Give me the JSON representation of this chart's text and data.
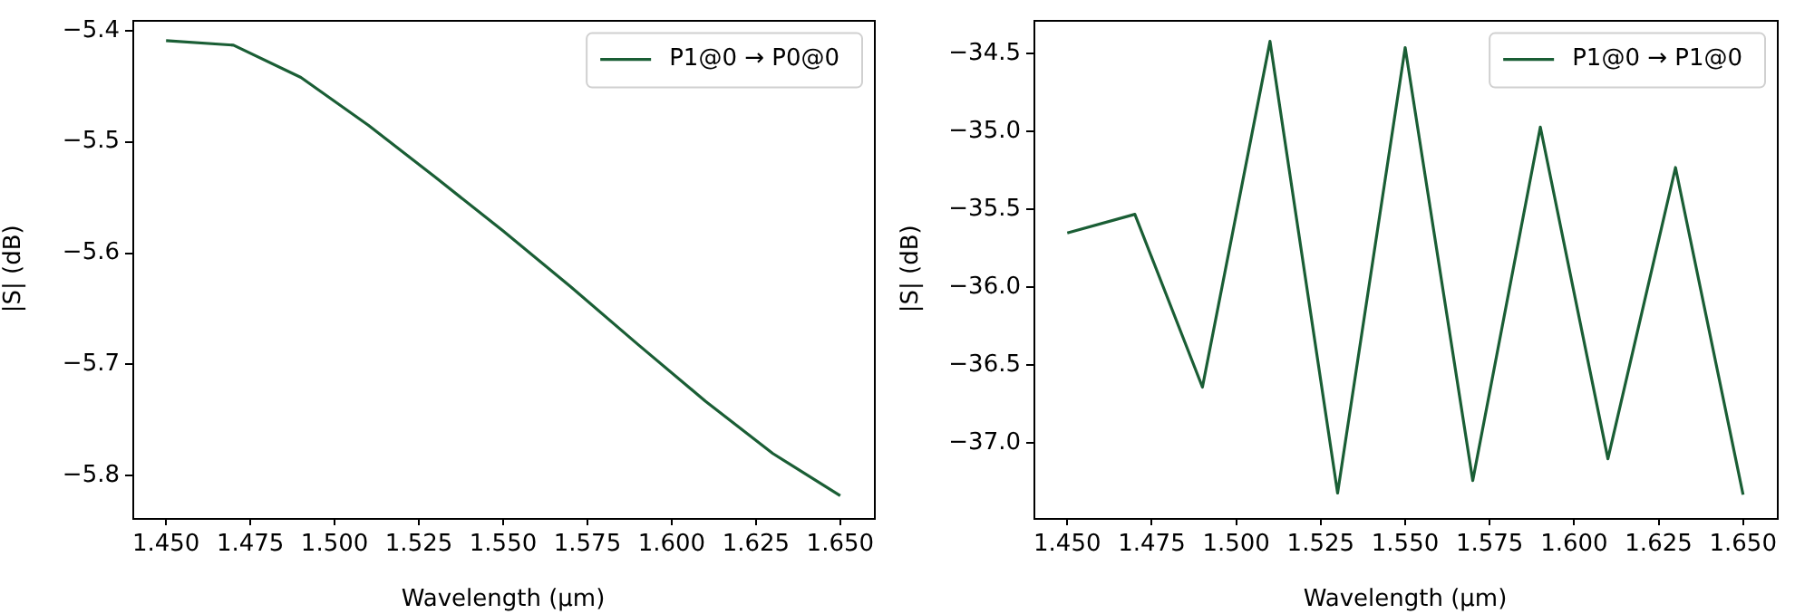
{
  "chart_data": [
    {
      "type": "line",
      "xlabel": "Wavelength (µm)",
      "ylabel": "|S| (dB)",
      "legend": "top right",
      "grid": false,
      "x": [
        1.45,
        1.47,
        1.49,
        1.51,
        1.53,
        1.55,
        1.57,
        1.59,
        1.61,
        1.63,
        1.65
      ],
      "series": [
        {
          "name": "P1@0 → P0@0",
          "color": "#1a5e35",
          "values": [
            -5.409,
            -5.413,
            -5.442,
            -5.485,
            -5.532,
            -5.58,
            -5.63,
            -5.682,
            -5.733,
            -5.78,
            -5.818
          ]
        }
      ],
      "xlim": [
        1.44,
        1.66
      ],
      "ylim": [
        -5.838,
        -5.39
      ],
      "xticks": [
        {
          "value": 1.45,
          "label": "1.450"
        },
        {
          "value": 1.475,
          "label": "1.475"
        },
        {
          "value": 1.5,
          "label": "1.500"
        },
        {
          "value": 1.525,
          "label": "1.525"
        },
        {
          "value": 1.55,
          "label": "1.550"
        },
        {
          "value": 1.575,
          "label": "1.575"
        },
        {
          "value": 1.6,
          "label": "1.600"
        },
        {
          "value": 1.625,
          "label": "1.625"
        },
        {
          "value": 1.65,
          "label": "1.650"
        }
      ],
      "yticks": [
        {
          "value": -5.8,
          "label": "−5.8"
        },
        {
          "value": -5.7,
          "label": "−5.7"
        },
        {
          "value": -5.6,
          "label": "−5.6"
        },
        {
          "value": -5.5,
          "label": "−5.5"
        },
        {
          "value": -5.4,
          "label": "−5.4"
        }
      ]
    },
    {
      "type": "line",
      "xlabel": "Wavelength (µm)",
      "ylabel": "|S| (dB)",
      "legend": "top right",
      "grid": false,
      "x": [
        1.45,
        1.47,
        1.49,
        1.51,
        1.53,
        1.55,
        1.57,
        1.59,
        1.61,
        1.63,
        1.65
      ],
      "series": [
        {
          "name": "P1@0 → P1@0",
          "color": "#1a5e35",
          "values": [
            -35.65,
            -35.53,
            -36.64,
            -34.42,
            -37.32,
            -34.46,
            -37.24,
            -34.97,
            -37.1,
            -35.23,
            -37.33
          ]
        }
      ],
      "xlim": [
        1.44,
        1.66
      ],
      "ylim": [
        -37.48,
        -34.28
      ],
      "xticks": [
        {
          "value": 1.45,
          "label": "1.450"
        },
        {
          "value": 1.475,
          "label": "1.475"
        },
        {
          "value": 1.5,
          "label": "1.500"
        },
        {
          "value": 1.525,
          "label": "1.525"
        },
        {
          "value": 1.55,
          "label": "1.550"
        },
        {
          "value": 1.575,
          "label": "1.575"
        },
        {
          "value": 1.6,
          "label": "1.600"
        },
        {
          "value": 1.625,
          "label": "1.625"
        },
        {
          "value": 1.65,
          "label": "1.650"
        }
      ],
      "yticks": [
        {
          "value": -37.0,
          "label": "−37.0"
        },
        {
          "value": -36.5,
          "label": "−36.5"
        },
        {
          "value": -36.0,
          "label": "−36.0"
        },
        {
          "value": -35.5,
          "label": "−35.5"
        },
        {
          "value": -35.0,
          "label": "−35.0"
        },
        {
          "value": -34.5,
          "label": "−34.5"
        }
      ]
    }
  ]
}
